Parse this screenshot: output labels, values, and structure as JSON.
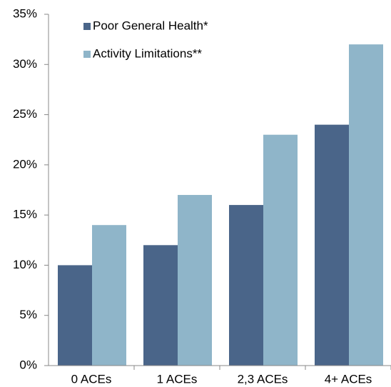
{
  "chart_data": {
    "type": "bar",
    "categories": [
      "0 ACEs",
      "1 ACEs",
      "2,3 ACEs",
      "4+ ACEs"
    ],
    "series": [
      {
        "name": "Poor General Health*",
        "color": "#4a6589",
        "values": [
          10,
          12,
          16,
          24
        ]
      },
      {
        "name": "Activity Limitations**",
        "color": "#8fb5c9",
        "values": [
          14,
          17,
          23,
          32
        ]
      }
    ],
    "ylim": [
      0,
      35
    ],
    "yticks": [
      {
        "value": 0,
        "label": "0%"
      },
      {
        "value": 5,
        "label": "5%"
      },
      {
        "value": 10,
        "label": "10%"
      },
      {
        "value": 15,
        "label": "15%"
      },
      {
        "value": 20,
        "label": "20%"
      },
      {
        "value": 25,
        "label": "25%"
      },
      {
        "value": 30,
        "label": "30%"
      },
      {
        "value": 35,
        "label": "35%"
      }
    ],
    "grid": false,
    "legend": "top-left"
  }
}
